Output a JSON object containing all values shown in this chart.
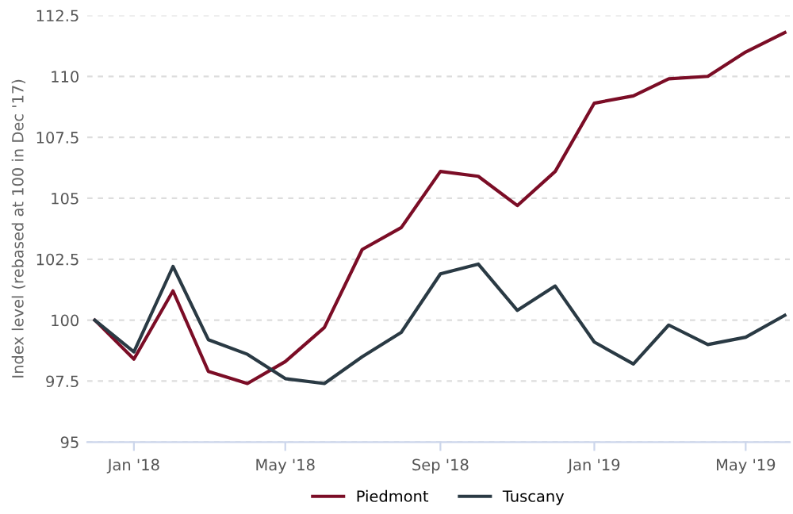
{
  "chart_data": {
    "type": "line",
    "ylabel": "Index level (rebased at 100 in Dec '17)",
    "x": [
      "2017-12",
      "2018-01",
      "2018-02",
      "2018-03",
      "2018-04",
      "2018-05",
      "2018-06",
      "2018-07",
      "2018-08",
      "2018-09",
      "2018-10",
      "2018-11",
      "2018-12",
      "2019-01",
      "2019-02",
      "2019-03",
      "2019-04",
      "2019-05",
      "2019-06"
    ],
    "series": [
      {
        "name": "Piedmont",
        "color": "#7b0d26",
        "values": [
          100,
          98.4,
          101.2,
          97.9,
          97.4,
          98.3,
          99.7,
          102.9,
          103.8,
          106.1,
          105.9,
          104.7,
          106.1,
          108.9,
          109.2,
          109.9,
          110.0,
          111.0,
          111.8
        ]
      },
      {
        "name": "Tuscany",
        "color": "#2a3a44",
        "values": [
          100,
          98.7,
          102.2,
          99.2,
          98.6,
          97.6,
          97.4,
          98.5,
          99.5,
          101.9,
          102.3,
          100.4,
          101.4,
          99.1,
          98.2,
          99.8,
          99.0,
          99.3,
          100.2
        ]
      }
    ],
    "xlim": [
      "2017-11-25",
      "2019-06-05"
    ],
    "xticks": [
      {
        "value": "2018-01",
        "label": "Jan '18"
      },
      {
        "value": "2018-05",
        "label": "May '18"
      },
      {
        "value": "2018-09",
        "label": "Sep '18"
      },
      {
        "value": "2019-01",
        "label": "Jan '19"
      },
      {
        "value": "2019-05",
        "label": "May '19"
      }
    ],
    "ylim": [
      95,
      112.5
    ],
    "yticks": [
      95,
      97.5,
      100,
      102.5,
      105,
      107.5,
      110,
      112.5
    ],
    "grid": "y",
    "legend": "bottom",
    "marker": "none",
    "line_style": "solid"
  }
}
